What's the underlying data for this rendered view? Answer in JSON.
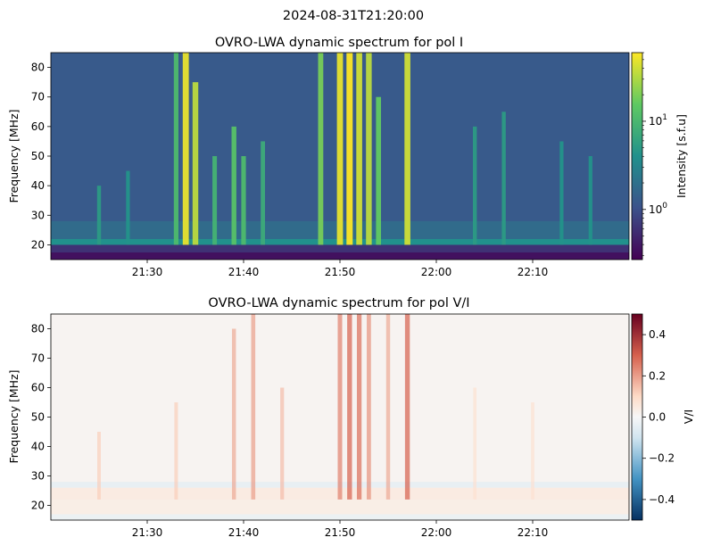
{
  "suptitle": "2024-08-31T21:20:00",
  "chart_data": [
    {
      "type": "heatmap",
      "title": "OVRO-LWA dynamic spectrum for pol I",
      "xlabel": "",
      "ylabel": "Frequency [MHz]",
      "x_range": [
        "21:20",
        "22:20"
      ],
      "x_ticks": [
        "21:30",
        "21:40",
        "21:50",
        "22:00",
        "22:10"
      ],
      "ylim": [
        15,
        85
      ],
      "y_ticks": [
        "20",
        "30",
        "40",
        "50",
        "60",
        "70",
        "80"
      ],
      "colormap": "viridis",
      "colorbar": {
        "label": "Intensity [s.f.u]",
        "scale": "log",
        "range": [
          0.27,
          60
        ],
        "ticks": [
          {
            "base": "10",
            "exp": "0",
            "value": 1
          },
          {
            "base": "10",
            "exp": "1",
            "value": 10
          }
        ]
      },
      "bursts": [
        {
          "t": "21:25",
          "fmin": 20,
          "fmax": 40,
          "level": 0.35
        },
        {
          "t": "21:28",
          "fmin": 20,
          "fmax": 45,
          "level": 0.3
        },
        {
          "t": "21:33",
          "fmin": 20,
          "fmax": 85,
          "level": 0.55
        },
        {
          "t": "21:34",
          "fmin": 20,
          "fmax": 85,
          "level": 0.95
        },
        {
          "t": "21:35",
          "fmin": 20,
          "fmax": 75,
          "level": 0.85
        },
        {
          "t": "21:37",
          "fmin": 20,
          "fmax": 50,
          "level": 0.5
        },
        {
          "t": "21:39",
          "fmin": 20,
          "fmax": 60,
          "level": 0.6
        },
        {
          "t": "21:40",
          "fmin": 20,
          "fmax": 50,
          "level": 0.55
        },
        {
          "t": "21:42",
          "fmin": 20,
          "fmax": 55,
          "level": 0.45
        },
        {
          "t": "21:48",
          "fmin": 20,
          "fmax": 85,
          "level": 0.7
        },
        {
          "t": "21:50",
          "fmin": 20,
          "fmax": 85,
          "level": 0.95
        },
        {
          "t": "21:51",
          "fmin": 20,
          "fmax": 85,
          "level": 1.0
        },
        {
          "t": "21:52",
          "fmin": 20,
          "fmax": 85,
          "level": 0.9
        },
        {
          "t": "21:53",
          "fmin": 20,
          "fmax": 85,
          "level": 0.85
        },
        {
          "t": "21:54",
          "fmin": 20,
          "fmax": 70,
          "level": 0.65
        },
        {
          "t": "21:57",
          "fmin": 20,
          "fmax": 85,
          "level": 0.9
        },
        {
          "t": "22:04",
          "fmin": 20,
          "fmax": 60,
          "level": 0.35
        },
        {
          "t": "22:07",
          "fmin": 20,
          "fmax": 65,
          "level": 0.35
        },
        {
          "t": "22:13",
          "fmin": 20,
          "fmax": 55,
          "level": 0.3
        },
        {
          "t": "22:16",
          "fmin": 20,
          "fmax": 50,
          "level": 0.3
        }
      ]
    },
    {
      "type": "heatmap",
      "title": "OVRO-LWA dynamic spectrum for pol V/I",
      "xlabel": "",
      "ylabel": "Frequency [MHz]",
      "x_range": [
        "21:20",
        "22:20"
      ],
      "x_ticks": [
        "21:30",
        "21:40",
        "21:50",
        "22:00",
        "22:10"
      ],
      "ylim": [
        15,
        85
      ],
      "y_ticks": [
        "20",
        "30",
        "40",
        "50",
        "60",
        "70",
        "80"
      ],
      "colormap": "RdBu_r",
      "colorbar": {
        "label": "V/I",
        "scale": "linear",
        "range": [
          -0.5,
          0.5
        ],
        "ticks": [
          "0.4",
          "0.2",
          "0.0",
          "−0.2",
          "−0.4"
        ]
      },
      "bursts": [
        {
          "t": "21:25",
          "fmin": 22,
          "fmax": 45,
          "level": 0.12
        },
        {
          "t": "21:33",
          "fmin": 22,
          "fmax": 55,
          "level": 0.12
        },
        {
          "t": "21:39",
          "fmin": 22,
          "fmax": 80,
          "level": 0.18
        },
        {
          "t": "21:41",
          "fmin": 22,
          "fmax": 85,
          "level": 0.2
        },
        {
          "t": "21:44",
          "fmin": 22,
          "fmax": 60,
          "level": 0.15
        },
        {
          "t": "21:50",
          "fmin": 22,
          "fmax": 85,
          "level": 0.25
        },
        {
          "t": "21:51",
          "fmin": 22,
          "fmax": 85,
          "level": 0.3
        },
        {
          "t": "21:52",
          "fmin": 22,
          "fmax": 85,
          "level": 0.28
        },
        {
          "t": "21:53",
          "fmin": 22,
          "fmax": 85,
          "level": 0.22
        },
        {
          "t": "21:55",
          "fmin": 22,
          "fmax": 85,
          "level": 0.18
        },
        {
          "t": "21:57",
          "fmin": 22,
          "fmax": 85,
          "level": 0.3
        },
        {
          "t": "22:04",
          "fmin": 22,
          "fmax": 60,
          "level": 0.08
        },
        {
          "t": "22:10",
          "fmin": 22,
          "fmax": 55,
          "level": 0.08
        }
      ]
    }
  ]
}
